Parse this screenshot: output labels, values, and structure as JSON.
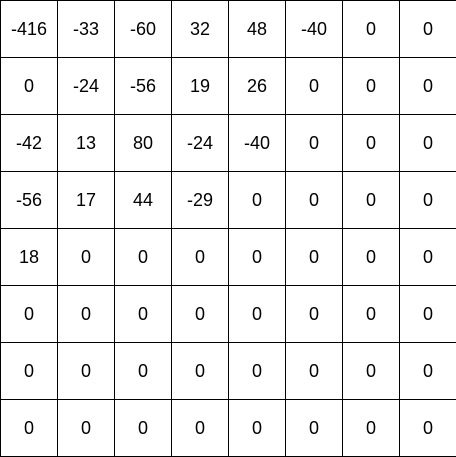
{
  "matrix": {
    "rows": [
      [
        "-416",
        "-33",
        "-60",
        "32",
        "48",
        "-40",
        "0",
        "0"
      ],
      [
        "0",
        "-24",
        "-56",
        "19",
        "26",
        "0",
        "0",
        "0"
      ],
      [
        "-42",
        "13",
        "80",
        "-24",
        "-40",
        "0",
        "0",
        "0"
      ],
      [
        "-56",
        "17",
        "44",
        "-29",
        "0",
        "0",
        "0",
        "0"
      ],
      [
        "18",
        "0",
        "0",
        "0",
        "0",
        "0",
        "0",
        "0"
      ],
      [
        "0",
        "0",
        "0",
        "0",
        "0",
        "0",
        "0",
        "0"
      ],
      [
        "0",
        "0",
        "0",
        "0",
        "0",
        "0",
        "0",
        "0"
      ],
      [
        "0",
        "0",
        "0",
        "0",
        "0",
        "0",
        "0",
        "0"
      ]
    ]
  },
  "colors": {
    "border": "#000000",
    "text": "#000000",
    "background": "#ffffff"
  }
}
